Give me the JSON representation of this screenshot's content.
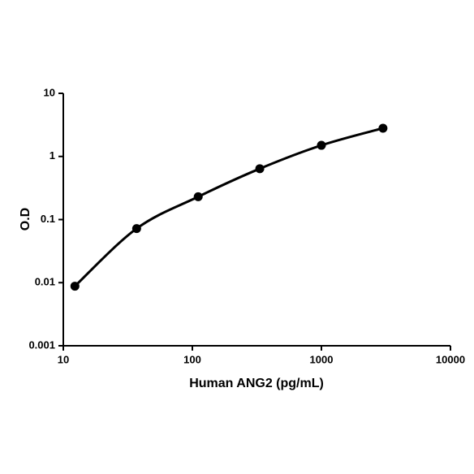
{
  "chart_data": {
    "type": "scatter",
    "x_label": "Human ANG2 (pg/mL)",
    "y_label": "O.D",
    "x": [
      12.3,
      37,
      111,
      333,
      1000,
      3000
    ],
    "values": [
      0.0088,
      0.072,
      0.23,
      0.64,
      1.5,
      2.8
    ],
    "color": "#000000",
    "smooth_line": true,
    "xscale": "log",
    "yscale": "log",
    "xlim": [
      10,
      10000
    ],
    "ylim": [
      0.001,
      10
    ],
    "xticks": [
      10,
      100,
      1000,
      10000
    ],
    "yticks": [
      0.001,
      0.01,
      0.1,
      1,
      10
    ]
  }
}
